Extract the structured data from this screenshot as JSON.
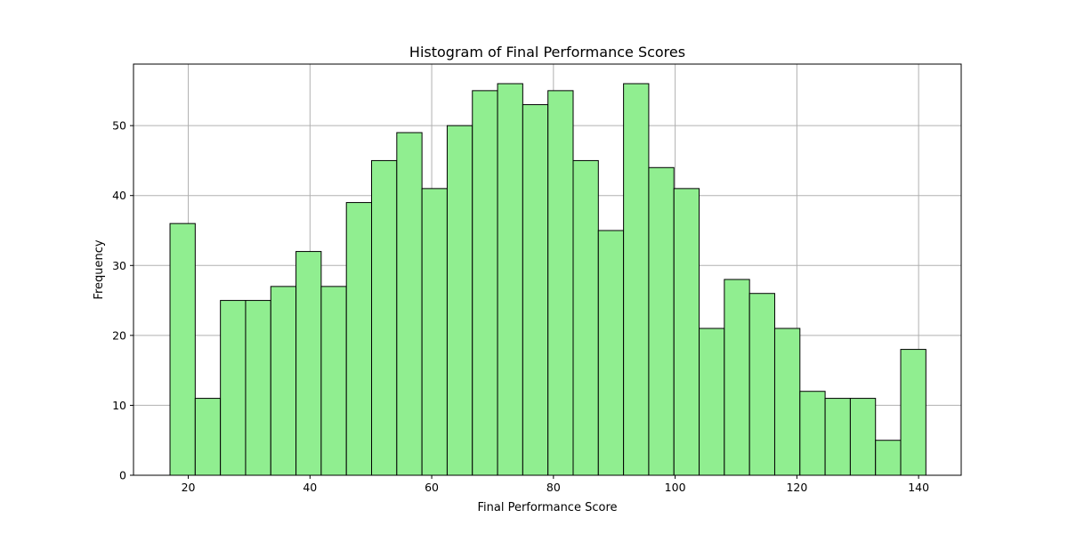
{
  "chart_data": {
    "type": "bar",
    "title": "Histogram of Final Performance Scores",
    "xlabel": "Final Performance Score",
    "ylabel": "Frequency",
    "bin_start": 17,
    "bin_width": 4.14,
    "counts": [
      36,
      11,
      25,
      25,
      27,
      32,
      27,
      39,
      45,
      49,
      41,
      50,
      55,
      56,
      53,
      55,
      45,
      35,
      56,
      44,
      41,
      21,
      28,
      26,
      21,
      12,
      11,
      11,
      5,
      18
    ],
    "xlim": [
      11,
      147
    ],
    "ylim": [
      0,
      58.8
    ],
    "xticks": [
      20,
      40,
      60,
      80,
      100,
      120,
      140
    ],
    "yticks": [
      0,
      10,
      20,
      30,
      40,
      50
    ],
    "grid": true,
    "colors": {
      "bar_fill": "#90ee90",
      "bar_edge": "#000000",
      "grid": "#b0b0b0"
    }
  }
}
